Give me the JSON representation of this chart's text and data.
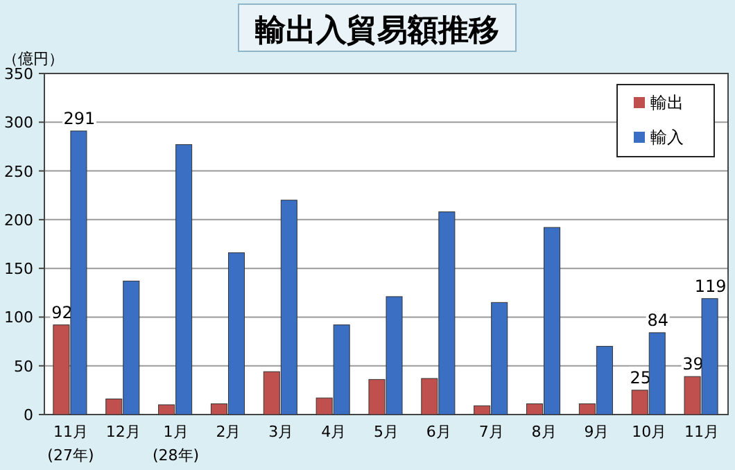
{
  "chart_data": {
    "type": "bar",
    "title": "輸出入貿易額推移",
    "ylabel": "（億円）",
    "categories": [
      "11月\n(27年)",
      "12月",
      "1月\n(28年)",
      "2月",
      "3月",
      "4月",
      "5月",
      "6月",
      "7月",
      "8月",
      "9月",
      "10月",
      "11月"
    ],
    "series": [
      {
        "name": "輸出",
        "color": "#c0504d",
        "values": [
          92,
          16,
          10,
          11,
          44,
          17,
          36,
          37,
          9,
          11,
          11,
          25,
          39
        ],
        "value_labels": [
          "92",
          null,
          null,
          null,
          null,
          null,
          null,
          null,
          null,
          null,
          null,
          "25",
          "39"
        ]
      },
      {
        "name": "輸入",
        "color": "#3a6fc4",
        "values": [
          291,
          137,
          277,
          166,
          220,
          92,
          121,
          208,
          115,
          192,
          70,
          84,
          119
        ],
        "value_labels": [
          "291",
          null,
          null,
          null,
          null,
          null,
          null,
          null,
          null,
          null,
          null,
          "84",
          "119"
        ]
      }
    ],
    "ylim": [
      0,
      350
    ],
    "yticks": [
      0,
      50,
      100,
      150,
      200,
      250,
      300,
      350
    ],
    "grid": "y",
    "legend": "top right"
  }
}
